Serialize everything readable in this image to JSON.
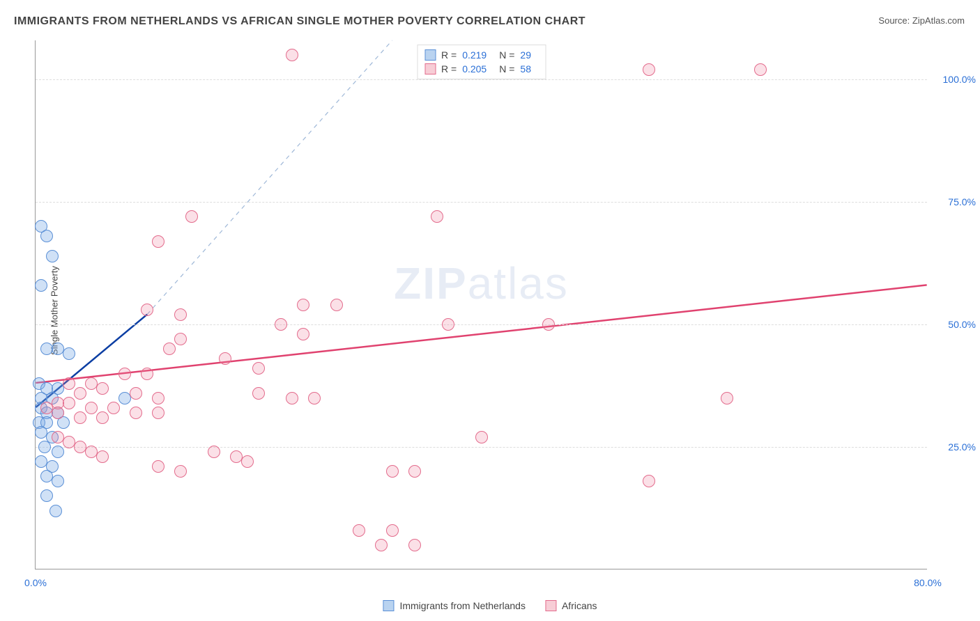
{
  "title": "IMMIGRANTS FROM NETHERLANDS VS AFRICAN SINGLE MOTHER POVERTY CORRELATION CHART",
  "source_label": "Source:",
  "source_value": "ZipAtlas.com",
  "y_axis_label": "Single Mother Poverty",
  "watermark_zip": "ZIP",
  "watermark_atlas": "atlas",
  "chart": {
    "type": "scatter",
    "background_color": "#ffffff",
    "grid_color": "#dddddd",
    "axis_color": "#999999",
    "tick_label_color": "#2a6fd6",
    "xlim": [
      0,
      80
    ],
    "ylim": [
      0,
      108
    ],
    "x_ticks": [
      {
        "v": 0,
        "label": "0.0%"
      },
      {
        "v": 80,
        "label": "80.0%"
      }
    ],
    "y_ticks": [
      {
        "v": 25,
        "label": "25.0%"
      },
      {
        "v": 50,
        "label": "50.0%"
      },
      {
        "v": 75,
        "label": "75.0%"
      },
      {
        "v": 100,
        "label": "100.0%"
      }
    ],
    "series": [
      {
        "id": "netherlands",
        "label": "Immigrants from Netherlands",
        "swatch_fill": "#b9d3f0",
        "swatch_stroke": "#5a8fd6",
        "point_fill": "rgba(120,170,230,0.35)",
        "point_stroke": "#5a8fd6",
        "point_radius": 9,
        "R_label": "R =",
        "R_value": "0.219",
        "N_label": "N =",
        "N_value": "29",
        "points": [
          [
            0.5,
            70
          ],
          [
            1,
            68
          ],
          [
            1.5,
            64
          ],
          [
            0.5,
            58
          ],
          [
            1,
            45
          ],
          [
            2,
            45
          ],
          [
            3,
            44
          ],
          [
            0.3,
            38
          ],
          [
            1,
            37
          ],
          [
            2,
            37
          ],
          [
            0.5,
            35
          ],
          [
            1.5,
            35
          ],
          [
            0.5,
            33
          ],
          [
            1,
            32
          ],
          [
            2,
            32
          ],
          [
            0.3,
            30
          ],
          [
            1,
            30
          ],
          [
            2.5,
            30
          ],
          [
            0.5,
            28
          ],
          [
            1.5,
            27
          ],
          [
            0.8,
            25
          ],
          [
            2,
            24
          ],
          [
            0.5,
            22
          ],
          [
            1.5,
            21
          ],
          [
            1,
            19
          ],
          [
            2,
            18
          ],
          [
            1,
            15
          ],
          [
            1.8,
            12
          ],
          [
            8,
            35
          ]
        ],
        "trend": {
          "solid": {
            "x1": 0,
            "y1": 33,
            "x2": 10,
            "y2": 52,
            "color": "#0b3ea3",
            "width": 2.5
          },
          "dashed": {
            "x1": 10,
            "y1": 52,
            "x2": 32,
            "y2": 108,
            "color": "#9fb8d8",
            "width": 1.2
          }
        }
      },
      {
        "id": "africans",
        "label": "Africans",
        "swatch_fill": "#f7cdd6",
        "swatch_stroke": "#e36b8c",
        "point_fill": "rgba(240,130,160,0.25)",
        "point_stroke": "#e36b8c",
        "point_radius": 9,
        "R_label": "R =",
        "R_value": "0.205",
        "N_label": "N =",
        "N_value": "58",
        "points": [
          [
            23,
            105
          ],
          [
            55,
            102
          ],
          [
            65,
            102
          ],
          [
            36,
            72
          ],
          [
            14,
            72
          ],
          [
            11,
            67
          ],
          [
            24,
            54
          ],
          [
            27,
            54
          ],
          [
            10,
            53
          ],
          [
            13,
            52
          ],
          [
            22,
            50
          ],
          [
            24,
            48
          ],
          [
            13,
            47
          ],
          [
            12,
            45
          ],
          [
            37,
            50
          ],
          [
            46,
            50
          ],
          [
            17,
            43
          ],
          [
            20,
            41
          ],
          [
            8,
            40
          ],
          [
            10,
            40
          ],
          [
            3,
            38
          ],
          [
            5,
            38
          ],
          [
            6,
            37
          ],
          [
            4,
            36
          ],
          [
            9,
            36
          ],
          [
            11,
            35
          ],
          [
            23,
            35
          ],
          [
            25,
            35
          ],
          [
            2,
            34
          ],
          [
            3,
            34
          ],
          [
            5,
            33
          ],
          [
            7,
            33
          ],
          [
            9,
            32
          ],
          [
            11,
            32
          ],
          [
            1,
            33
          ],
          [
            2,
            32
          ],
          [
            4,
            31
          ],
          [
            6,
            31
          ],
          [
            20,
            36
          ],
          [
            40,
            27
          ],
          [
            62,
            35
          ],
          [
            16,
            24
          ],
          [
            18,
            23
          ],
          [
            19,
            22
          ],
          [
            11,
            21
          ],
          [
            13,
            20
          ],
          [
            32,
            20
          ],
          [
            34,
            20
          ],
          [
            55,
            18
          ],
          [
            29,
            8
          ],
          [
            32,
            8
          ],
          [
            31,
            5
          ],
          [
            34,
            5
          ],
          [
            2,
            27
          ],
          [
            3,
            26
          ],
          [
            4,
            25
          ],
          [
            5,
            24
          ],
          [
            6,
            23
          ]
        ],
        "trend": {
          "solid": {
            "x1": 0,
            "y1": 38,
            "x2": 80,
            "y2": 58,
            "color": "#e0426f",
            "width": 2.5
          }
        }
      }
    ]
  }
}
